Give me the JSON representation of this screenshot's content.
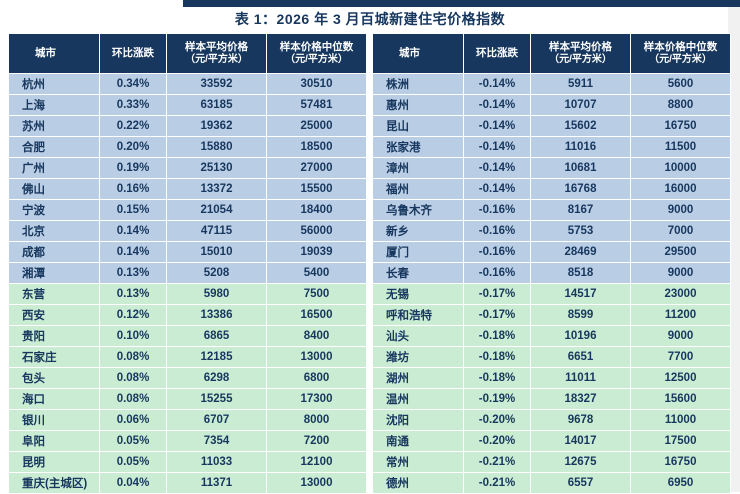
{
  "title": "表 1：2026 年 3 月百城新建住宅价格指数",
  "colors": {
    "header_bg": "#17375E",
    "accent_bar": "#17375E",
    "text": "#17375E",
    "row_blue": "#B9CDE5",
    "row_green": "#C9ECD2"
  },
  "columns": [
    {
      "key": "city",
      "label": "城市",
      "sub": ""
    },
    {
      "key": "change",
      "label": "环比涨跌",
      "sub": ""
    },
    {
      "key": "avg",
      "label": "样本平均价格",
      "sub": "（元/平方米）"
    },
    {
      "key": "median",
      "label": "样本价格中位数",
      "sub": "（元/平方米）"
    }
  ],
  "left_rows": [
    {
      "city": "杭州",
      "change": "0.34%",
      "avg": "33592",
      "median": "30510",
      "tone": "blue"
    },
    {
      "city": "上海",
      "change": "0.33%",
      "avg": "63185",
      "median": "57481",
      "tone": "blue"
    },
    {
      "city": "苏州",
      "change": "0.22%",
      "avg": "19362",
      "median": "25000",
      "tone": "blue"
    },
    {
      "city": "合肥",
      "change": "0.20%",
      "avg": "15880",
      "median": "18500",
      "tone": "blue"
    },
    {
      "city": "广州",
      "change": "0.19%",
      "avg": "25130",
      "median": "27000",
      "tone": "blue"
    },
    {
      "city": "佛山",
      "change": "0.16%",
      "avg": "13372",
      "median": "15500",
      "tone": "blue"
    },
    {
      "city": "宁波",
      "change": "0.15%",
      "avg": "21054",
      "median": "18400",
      "tone": "blue"
    },
    {
      "city": "北京",
      "change": "0.14%",
      "avg": "47115",
      "median": "56000",
      "tone": "blue"
    },
    {
      "city": "成都",
      "change": "0.14%",
      "avg": "15010",
      "median": "19039",
      "tone": "blue"
    },
    {
      "city": "湘潭",
      "change": "0.13%",
      "avg": "5208",
      "median": "5400",
      "tone": "blue"
    },
    {
      "city": "东营",
      "change": "0.13%",
      "avg": "5980",
      "median": "7500",
      "tone": "green"
    },
    {
      "city": "西安",
      "change": "0.12%",
      "avg": "13386",
      "median": "16500",
      "tone": "green"
    },
    {
      "city": "贵阳",
      "change": "0.10%",
      "avg": "6865",
      "median": "8400",
      "tone": "green"
    },
    {
      "city": "石家庄",
      "change": "0.08%",
      "avg": "12185",
      "median": "13000",
      "tone": "green"
    },
    {
      "city": "包头",
      "change": "0.08%",
      "avg": "6298",
      "median": "6800",
      "tone": "green"
    },
    {
      "city": "海口",
      "change": "0.08%",
      "avg": "15255",
      "median": "17300",
      "tone": "green"
    },
    {
      "city": "银川",
      "change": "0.06%",
      "avg": "6707",
      "median": "8000",
      "tone": "green"
    },
    {
      "city": "阜阳",
      "change": "0.05%",
      "avg": "7354",
      "median": "7200",
      "tone": "green"
    },
    {
      "city": "昆明",
      "change": "0.05%",
      "avg": "11033",
      "median": "12100",
      "tone": "green"
    },
    {
      "city": "重庆(主城区)",
      "change": "0.04%",
      "avg": "11371",
      "median": "13000",
      "tone": "green"
    }
  ],
  "right_rows": [
    {
      "city": "株洲",
      "change": "-0.14%",
      "avg": "5911",
      "median": "5600",
      "tone": "blue"
    },
    {
      "city": "惠州",
      "change": "-0.14%",
      "avg": "10707",
      "median": "8800",
      "tone": "blue"
    },
    {
      "city": "昆山",
      "change": "-0.14%",
      "avg": "15602",
      "median": "16750",
      "tone": "blue"
    },
    {
      "city": "张家港",
      "change": "-0.14%",
      "avg": "11016",
      "median": "11500",
      "tone": "blue"
    },
    {
      "city": "漳州",
      "change": "-0.14%",
      "avg": "10681",
      "median": "10000",
      "tone": "blue"
    },
    {
      "city": "福州",
      "change": "-0.14%",
      "avg": "16768",
      "median": "16000",
      "tone": "blue"
    },
    {
      "city": "乌鲁木齐",
      "change": "-0.16%",
      "avg": "8167",
      "median": "9000",
      "tone": "blue"
    },
    {
      "city": "新乡",
      "change": "-0.16%",
      "avg": "5753",
      "median": "7000",
      "tone": "blue"
    },
    {
      "city": "厦门",
      "change": "-0.16%",
      "avg": "28469",
      "median": "29500",
      "tone": "blue"
    },
    {
      "city": "长春",
      "change": "-0.16%",
      "avg": "8518",
      "median": "9000",
      "tone": "blue"
    },
    {
      "city": "无锡",
      "change": "-0.17%",
      "avg": "14517",
      "median": "23000",
      "tone": "green"
    },
    {
      "city": "呼和浩特",
      "change": "-0.17%",
      "avg": "8599",
      "median": "11200",
      "tone": "green"
    },
    {
      "city": "汕头",
      "change": "-0.18%",
      "avg": "10196",
      "median": "9000",
      "tone": "green"
    },
    {
      "city": "潍坊",
      "change": "-0.18%",
      "avg": "6651",
      "median": "7700",
      "tone": "green"
    },
    {
      "city": "湖州",
      "change": "-0.18%",
      "avg": "11011",
      "median": "12500",
      "tone": "green"
    },
    {
      "city": "温州",
      "change": "-0.19%",
      "avg": "18327",
      "median": "15600",
      "tone": "green"
    },
    {
      "city": "沈阳",
      "change": "-0.20%",
      "avg": "9678",
      "median": "11000",
      "tone": "green"
    },
    {
      "city": "南通",
      "change": "-0.20%",
      "avg": "14017",
      "median": "17500",
      "tone": "green"
    },
    {
      "city": "常州",
      "change": "-0.21%",
      "avg": "12675",
      "median": "16750",
      "tone": "green"
    },
    {
      "city": "德州",
      "change": "-0.21%",
      "avg": "6557",
      "median": "6950",
      "tone": "green"
    }
  ]
}
